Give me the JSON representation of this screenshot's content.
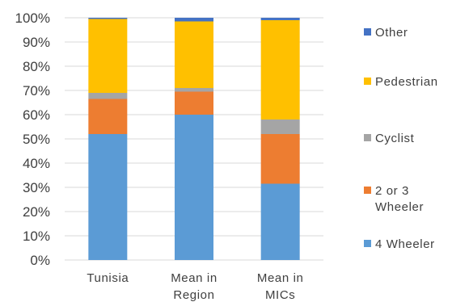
{
  "chart_data": {
    "type": "bar",
    "stacked": true,
    "percent": true,
    "categories": [
      [
        "Tunisia"
      ],
      [
        "Mean in",
        "Region"
      ],
      [
        "Mean in",
        "MICs"
      ]
    ],
    "series": [
      {
        "name": [
          "4 Wheeler"
        ],
        "color": "#5b9bd5",
        "values": [
          52,
          60,
          31.5
        ]
      },
      {
        "name": [
          "2 or 3",
          "Wheeler"
        ],
        "color": "#ed7d31",
        "values": [
          14.5,
          9.5,
          20.5
        ]
      },
      {
        "name": [
          "Cyclist"
        ],
        "color": "#a5a5a5",
        "values": [
          2.5,
          1.5,
          6
        ]
      },
      {
        "name": [
          "Pedestrian"
        ],
        "color": "#ffc000",
        "values": [
          30.5,
          27.5,
          41
        ]
      },
      {
        "name": [
          "Other"
        ],
        "color": "#4472c4",
        "values": [
          0.5,
          1.5,
          1
        ]
      }
    ],
    "ylim": [
      0,
      100
    ],
    "yticks": [
      "0%",
      "10%",
      "20%",
      "30%",
      "40%",
      "50%",
      "60%",
      "70%",
      "80%",
      "90%",
      "100%"
    ],
    "grid": true,
    "legend_position": "right"
  }
}
